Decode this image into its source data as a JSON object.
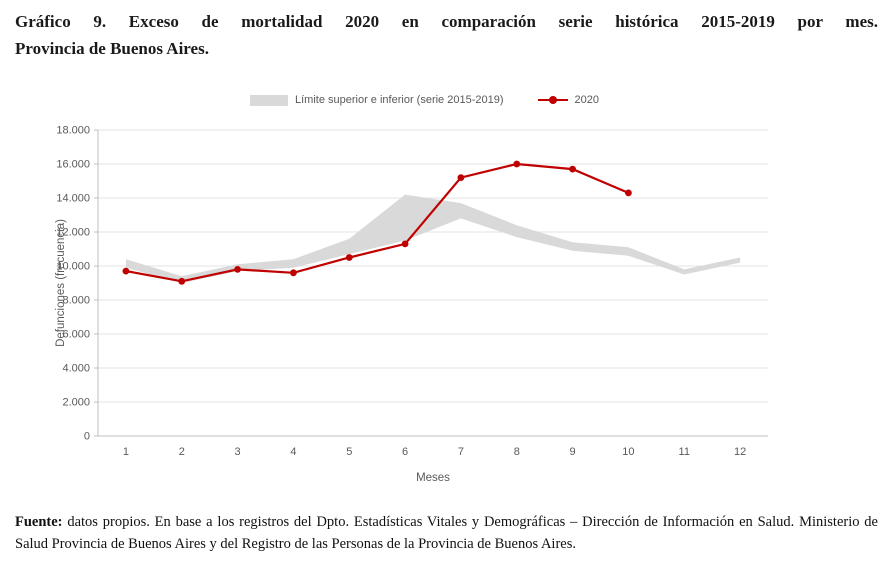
{
  "title": {
    "line1": "Gráfico 9. Exceso de mortalidad 2020 en comparación serie histórica 2015-2019 por mes.",
    "line2": "Provincia de Buenos Aires."
  },
  "source": {
    "label": "Fuente:",
    "text": "datos propios. En base a los registros del Dpto. Estadísticas Vitales y Demográficas – Dirección de Información en Salud. Ministerio de Salud Provincia de Buenos Aires y del Registro de las Personas de la Provincia de Buenos Aires."
  },
  "chart_data": {
    "type": "line",
    "title": "Exceso de mortalidad 2020 en comparación serie histórica 2015-2019 por mes. Provincia de Buenos Aires",
    "xlabel": "Meses",
    "ylabel": "Defunciones (frecuencia)",
    "ylim": [
      0,
      18000
    ],
    "categories": [
      "1",
      "2",
      "3",
      "4",
      "5",
      "6",
      "7",
      "8",
      "9",
      "10",
      "11",
      "12"
    ],
    "ytick_values": [
      0,
      2000,
      4000,
      6000,
      8000,
      10000,
      12000,
      14000,
      16000,
      18000
    ],
    "ytick_labels": [
      "0",
      "2.000",
      "4.000",
      "6.000",
      "8.000",
      "10.000",
      "12.000",
      "14.000",
      "16.000",
      "18.000"
    ],
    "legend": [
      "Límite superior e inferior (serie 2015-2019)",
      "2020"
    ],
    "legend_position": "top-center",
    "grid": "horizontal",
    "colors": {
      "band": "#d9d9d9",
      "line": "#c00000",
      "axis_text": "#595959",
      "grid": "#e3e3e3",
      "axis": "#bfbfbf"
    },
    "band": {
      "name": "Límite superior e inferior (serie 2015-2019)",
      "months": [
        1,
        2,
        3,
        4,
        5,
        6,
        7,
        8,
        9,
        10,
        11,
        12
      ],
      "upper": [
        10400,
        9400,
        10100,
        10400,
        11600,
        14200,
        13700,
        12400,
        11400,
        11100,
        9800,
        10500
      ],
      "lower": [
        9900,
        9000,
        9700,
        9900,
        10700,
        11500,
        12800,
        11700,
        10900,
        10600,
        9500,
        10200
      ]
    },
    "series": [
      {
        "name": "2020",
        "x": [
          1,
          2,
          3,
          4,
          5,
          6,
          7,
          8,
          9,
          10
        ],
        "values": [
          9700,
          9100,
          9800,
          9600,
          10500,
          11300,
          15200,
          16000,
          15700,
          14300
        ]
      }
    ]
  }
}
